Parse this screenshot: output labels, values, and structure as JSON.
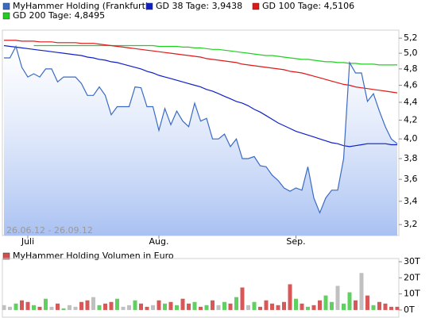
{
  "chart_data": [
    {
      "type": "line",
      "log_scale": true,
      "annotation": "26.06.12 - 26.09.12",
      "categories": [
        null,
        null,
        null,
        null,
        "Juli",
        null,
        null,
        null,
        null,
        null,
        null,
        null,
        null,
        null,
        null,
        null,
        null,
        null,
        null,
        null,
        null,
        null,
        null,
        null,
        null,
        null,
        "Aug.",
        null,
        null,
        null,
        null,
        null,
        null,
        null,
        null,
        null,
        null,
        null,
        null,
        null,
        null,
        null,
        null,
        null,
        null,
        null,
        null,
        null,
        null,
        "Sep.",
        null,
        null,
        null,
        null,
        null,
        null,
        null,
        null,
        null,
        null,
        null,
        null,
        null,
        null,
        null,
        null,
        null
      ],
      "ylim": [
        3.11,
        5.31
      ],
      "yticks": [
        {
          "value": 3.2,
          "label": "3,2"
        },
        {
          "value": 3.4,
          "label": "3,4"
        },
        {
          "value": 3.6,
          "label": "3,6"
        },
        {
          "value": 3.8,
          "label": "3,8"
        },
        {
          "value": 4.0,
          "label": "4,0"
        },
        {
          "value": 4.2,
          "label": "4,2"
        },
        {
          "value": 4.4,
          "label": "4,4"
        },
        {
          "value": 4.6,
          "label": "4,6"
        },
        {
          "value": 4.8,
          "label": "4,8"
        },
        {
          "value": 5.0,
          "label": "5,0"
        },
        {
          "value": 5.2,
          "label": "5,2"
        }
      ],
      "series": [
        {
          "name": "MyHammer Holding (Frankfurt)",
          "color": "#3a6bc4",
          "area": true,
          "values": [
            4.94,
            4.94,
            5.09,
            4.82,
            4.7,
            4.74,
            4.7,
            4.8,
            4.8,
            4.64,
            4.7,
            4.7,
            4.7,
            4.62,
            4.48,
            4.48,
            4.58,
            4.48,
            4.26,
            4.35,
            4.35,
            4.35,
            4.58,
            4.57,
            4.35,
            4.35,
            4.09,
            4.33,
            4.15,
            4.3,
            4.19,
            4.13,
            4.39,
            4.19,
            4.22,
            4.0,
            4.0,
            4.05,
            3.92,
            4.0,
            3.8,
            3.8,
            3.82,
            3.73,
            3.72,
            3.64,
            3.59,
            3.52,
            3.49,
            3.52,
            3.5,
            3.72,
            3.43,
            3.3,
            3.43,
            3.5,
            3.5,
            3.8,
            4.88,
            4.75,
            4.75,
            4.41,
            4.5,
            4.3,
            4.13,
            4.0,
            3.95
          ]
        },
        {
          "name": "GD 38 Tage: 3,9438",
          "color": "#1020c8",
          "values": [
            5.1,
            5.09,
            5.08,
            5.07,
            5.06,
            5.05,
            5.04,
            5.03,
            5.02,
            5.01,
            5.0,
            4.99,
            4.98,
            4.97,
            4.95,
            4.94,
            4.92,
            4.91,
            4.89,
            4.88,
            4.86,
            4.84,
            4.82,
            4.8,
            4.77,
            4.75,
            4.72,
            4.7,
            4.68,
            4.66,
            4.64,
            4.62,
            4.6,
            4.58,
            4.55,
            4.53,
            4.5,
            4.47,
            4.44,
            4.41,
            4.39,
            4.36,
            4.32,
            4.29,
            4.25,
            4.21,
            4.17,
            4.14,
            4.11,
            4.08,
            4.06,
            4.04,
            4.02,
            4.0,
            3.98,
            3.96,
            3.95,
            3.93,
            3.92,
            3.93,
            3.94,
            3.95,
            3.95,
            3.95,
            3.95,
            3.94,
            3.94
          ]
        },
        {
          "name": "GD 100 Tage: 4,5106",
          "color": "#e01818",
          "values": [
            5.17,
            5.17,
            5.17,
            5.16,
            5.16,
            5.16,
            5.15,
            5.15,
            5.15,
            5.14,
            5.14,
            5.14,
            5.14,
            5.13,
            5.13,
            5.13,
            5.12,
            5.11,
            5.1,
            5.09,
            5.08,
            5.07,
            5.06,
            5.05,
            5.04,
            5.03,
            5.02,
            5.01,
            5.0,
            4.99,
            4.98,
            4.97,
            4.96,
            4.95,
            4.93,
            4.92,
            4.91,
            4.9,
            4.89,
            4.88,
            4.86,
            4.85,
            4.84,
            4.83,
            4.82,
            4.81,
            4.8,
            4.79,
            4.77,
            4.76,
            4.75,
            4.73,
            4.71,
            4.69,
            4.67,
            4.65,
            4.63,
            4.61,
            4.6,
            4.58,
            4.57,
            4.56,
            4.55,
            4.54,
            4.53,
            4.52,
            4.51
          ]
        },
        {
          "name": "GD 200 Tage: 4,8495",
          "color": "#20d020",
          "values": [
            null,
            null,
            null,
            null,
            null,
            5.1,
            5.1,
            5.1,
            5.1,
            5.1,
            5.1,
            5.1,
            5.1,
            5.1,
            5.1,
            5.1,
            5.1,
            5.1,
            5.1,
            5.1,
            5.1,
            5.1,
            5.1,
            5.1,
            5.1,
            5.1,
            5.09,
            5.09,
            5.09,
            5.09,
            5.08,
            5.08,
            5.07,
            5.07,
            5.06,
            5.05,
            5.05,
            5.04,
            5.03,
            5.02,
            5.01,
            5.0,
            4.99,
            4.98,
            4.97,
            4.97,
            4.96,
            4.95,
            4.94,
            4.93,
            4.92,
            4.92,
            4.91,
            4.9,
            4.89,
            4.89,
            4.88,
            4.88,
            4.87,
            4.87,
            4.86,
            4.86,
            4.86,
            4.85,
            4.85,
            4.85,
            4.85
          ]
        }
      ]
    },
    {
      "type": "bar",
      "title": "MyHammer Holding Volumen in Euro",
      "color": "#d05050",
      "up_color": "#60d060",
      "down_color": "#d85858",
      "flat_color": "#c0c0c0",
      "ylim": [
        -3,
        32
      ],
      "yticks": [
        {
          "value": 0,
          "label": "0T"
        },
        {
          "value": 10,
          "label": "10T"
        },
        {
          "value": 20,
          "label": "20T"
        },
        {
          "value": 30,
          "label": "30T"
        }
      ],
      "values": [
        3,
        2,
        4,
        6,
        5,
        3,
        2,
        7,
        2,
        4,
        1,
        3,
        2,
        5,
        6,
        8,
        3,
        4,
        5,
        7,
        2,
        3,
        6,
        4,
        2,
        3,
        6,
        4,
        5,
        3,
        7,
        4,
        5,
        2,
        3,
        6,
        3,
        5,
        4,
        8,
        14,
        3,
        5,
        2,
        6,
        4,
        3,
        5,
        16,
        7,
        4,
        2,
        3,
        6,
        9,
        5,
        15,
        4,
        11,
        6,
        23,
        9,
        3,
        5,
        4,
        2,
        2
      ]
    }
  ]
}
